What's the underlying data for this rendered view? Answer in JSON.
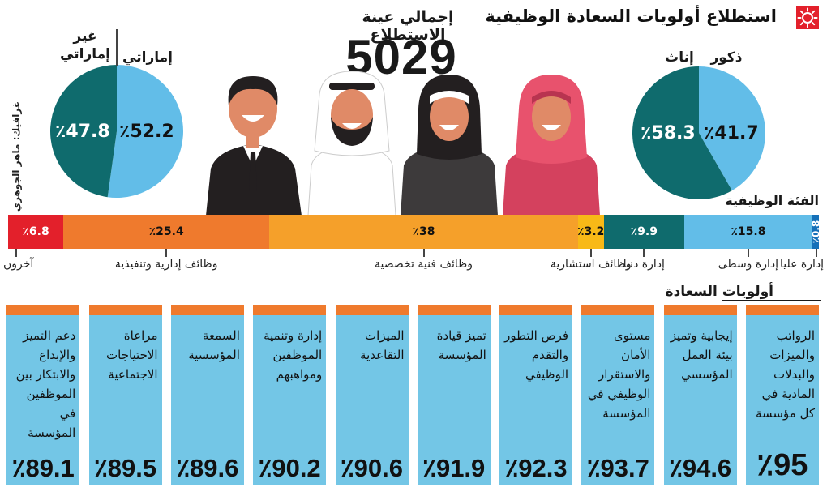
{
  "title": "استطلاع أولويات السعادة الوظيفية",
  "total": {
    "label": "إجمالي عينة الاستطلاع",
    "value": "5029"
  },
  "credit": "غرافيك: ماهر الجوهري",
  "colors": {
    "blue": "#62bde8",
    "teal": "#0f6b6d",
    "red": "#e3202b",
    "orange": "#ef7a2d",
    "amber": "#f5a02a",
    "yellow": "#f8b917",
    "darkblue": "#1570b8",
    "card": "#73c6e6"
  },
  "chart_data": [
    {
      "type": "pie",
      "labels": [
        "إماراتي",
        "غير إماراتي"
      ],
      "values": [
        52.2,
        47.8
      ],
      "value_labels": [
        "٪52.2",
        "٪47.8"
      ],
      "colors": [
        "#62bde8",
        "#0f6b6d"
      ]
    },
    {
      "type": "pie",
      "labels": [
        "ذكور",
        "إناث"
      ],
      "values": [
        41.7,
        58.3
      ],
      "value_labels": [
        "٪41.7",
        "٪58.3"
      ],
      "colors": [
        "#62bde8",
        "#0f6b6d"
      ]
    },
    {
      "type": "bar",
      "orientation": "stacked-horizontal",
      "title": "الفئة الوظيفية",
      "categories": [
        "إدارة عليا",
        "إدارة وسطى",
        "إدارة دنيا",
        "وظائف استشارية",
        "وظائف فنية تخصصية",
        "وظائف إدارية وتنفيذية",
        "آخرون"
      ],
      "values": [
        0.8,
        15.8,
        9.9,
        3.2,
        38,
        25.4,
        6.8
      ],
      "value_labels": [
        "٪0.8",
        "٪15.8",
        "٪9.9",
        "٪3.2",
        "٪38",
        "٪25.4",
        "٪6.8"
      ],
      "colors": [
        "#1570b8",
        "#62bde8",
        "#0f6b6d",
        "#f8b917",
        "#f5a02a",
        "#ef7a2d",
        "#e3202b"
      ],
      "text_colors": [
        "#ffffff",
        "#111111",
        "#ffffff",
        "#111111",
        "#111111",
        "#111111",
        "#ffffff"
      ]
    },
    {
      "type": "bar",
      "title": "أولويات السعادة",
      "categories": [
        "الرواتب والميزات والبدلات المادية في كل مؤسسة",
        "إيجابية وتميز بيئة العمل المؤسسي",
        "مستوى الأمان والاستقرار الوظيفي في المؤسسة",
        "فرص التطور والتقدم الوظيفي",
        "تميز قيادة المؤسسة",
        "الميزات التقاعدية",
        "إدارة وتنمية الموظفين ومواهبهم",
        "السمعة المؤسسية",
        "مراعاة الاحتياجات الاجتماعية",
        "دعم التميز والإبداع والابتكار بين الموظفين في المؤسسة"
      ],
      "values": [
        95,
        94.6,
        93.7,
        92.3,
        91.9,
        90.6,
        90.2,
        89.6,
        89.5,
        89.1
      ],
      "value_labels": [
        "٪95",
        "٪94.6",
        "٪93.7",
        "٪92.3",
        "٪91.9",
        "٪90.6",
        "٪90.2",
        "٪89.6",
        "٪89.5",
        "٪89.1"
      ]
    }
  ]
}
